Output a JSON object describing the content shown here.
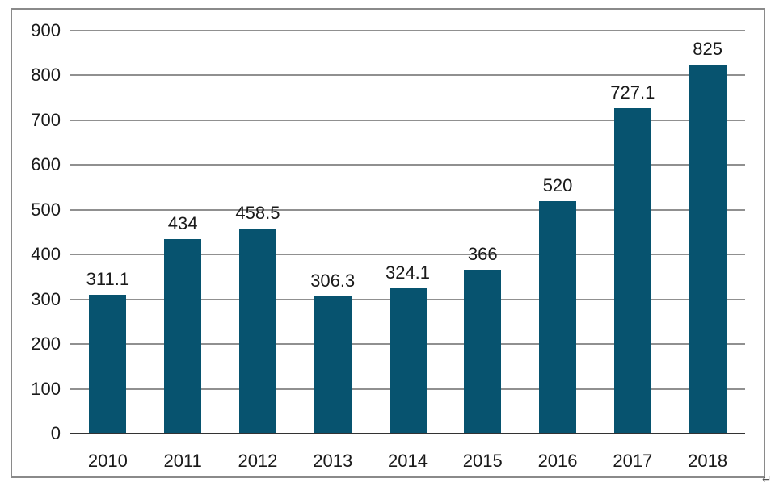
{
  "chart_data": {
    "type": "bar",
    "title": "",
    "xlabel": "",
    "ylabel": "",
    "categories": [
      "2010",
      "2011",
      "2012",
      "2013",
      "2014",
      "2015",
      "2016",
      "2017",
      "2018"
    ],
    "values": [
      311.1,
      434,
      458.5,
      306.3,
      324.1,
      366,
      520,
      727.1,
      825
    ],
    "data_labels": [
      "311.1",
      "434",
      "458.5",
      "306.3",
      "324.1",
      "366",
      "520",
      "727.1",
      "825"
    ],
    "ylim": [
      0,
      900
    ],
    "yticks": [
      0,
      100,
      200,
      300,
      400,
      500,
      600,
      700,
      800,
      900
    ],
    "grid": true,
    "legend": false,
    "colors": {
      "bar": "#07536f",
      "gridline": "#909090",
      "axis_baseline": "#333333",
      "text": "#1a1a1a",
      "frame_border": "#8a8a8a"
    }
  },
  "misc": {
    "return_mark": "↵"
  }
}
